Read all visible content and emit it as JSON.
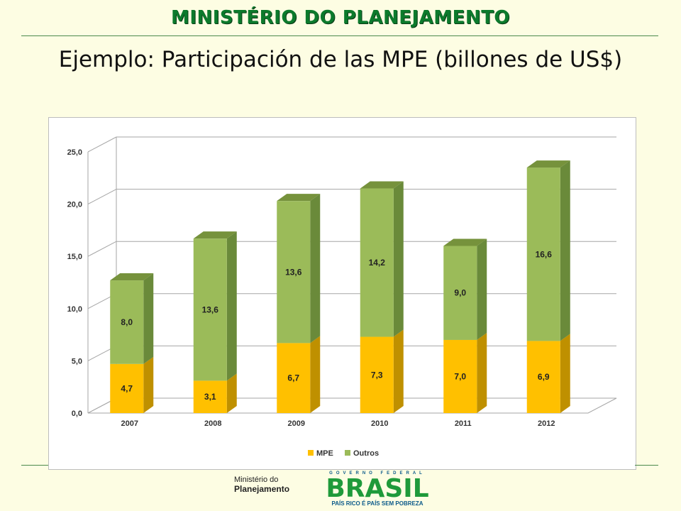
{
  "header": {
    "ministry": "MINISTÉRIO DO PLANEJAMENTO",
    "title": "Ejemplo: Participación de las MPE (billones de US$)"
  },
  "chart_data": {
    "type": "bar",
    "stacked": true,
    "style": "3d",
    "categories": [
      "2007",
      "2008",
      "2009",
      "2010",
      "2011",
      "2012"
    ],
    "series": [
      {
        "name": "MPE",
        "values": [
          4.7,
          3.1,
          6.7,
          7.3,
          7.0,
          6.9
        ],
        "labels": [
          "4,7",
          "3,1",
          "6,7",
          "7,3",
          "7,0",
          "6,9"
        ],
        "color": "#ffc000"
      },
      {
        "name": "Outros",
        "values": [
          8.0,
          13.6,
          13.6,
          14.2,
          9.0,
          16.6
        ],
        "labels": [
          "8,0",
          "13,6",
          "13,6",
          "14,2",
          "9,0",
          "16,6"
        ],
        "color": "#9bbb59"
      }
    ],
    "yticks": [
      "0,0",
      "5,0",
      "10,0",
      "15,0",
      "20,0",
      "25,0"
    ],
    "ylim": [
      0,
      25
    ],
    "grid": true,
    "legend_position": "bottom"
  },
  "footer": {
    "ministry_line1": "Ministério do",
    "ministry_line2": "Planejamento",
    "brand": "BRASIL",
    "top_text": "GOVERNO FEDERAL",
    "slogan": "PAÍS RICO É PAÍS SEM POBREZA"
  },
  "colors": {
    "mpe_front": "#ffc000",
    "mpe_side": "#bf9000",
    "mpe_top": "#d9a400",
    "outros_front": "#9bbb59",
    "outros_side": "#6a8a3a",
    "outros_top": "#76923c"
  }
}
